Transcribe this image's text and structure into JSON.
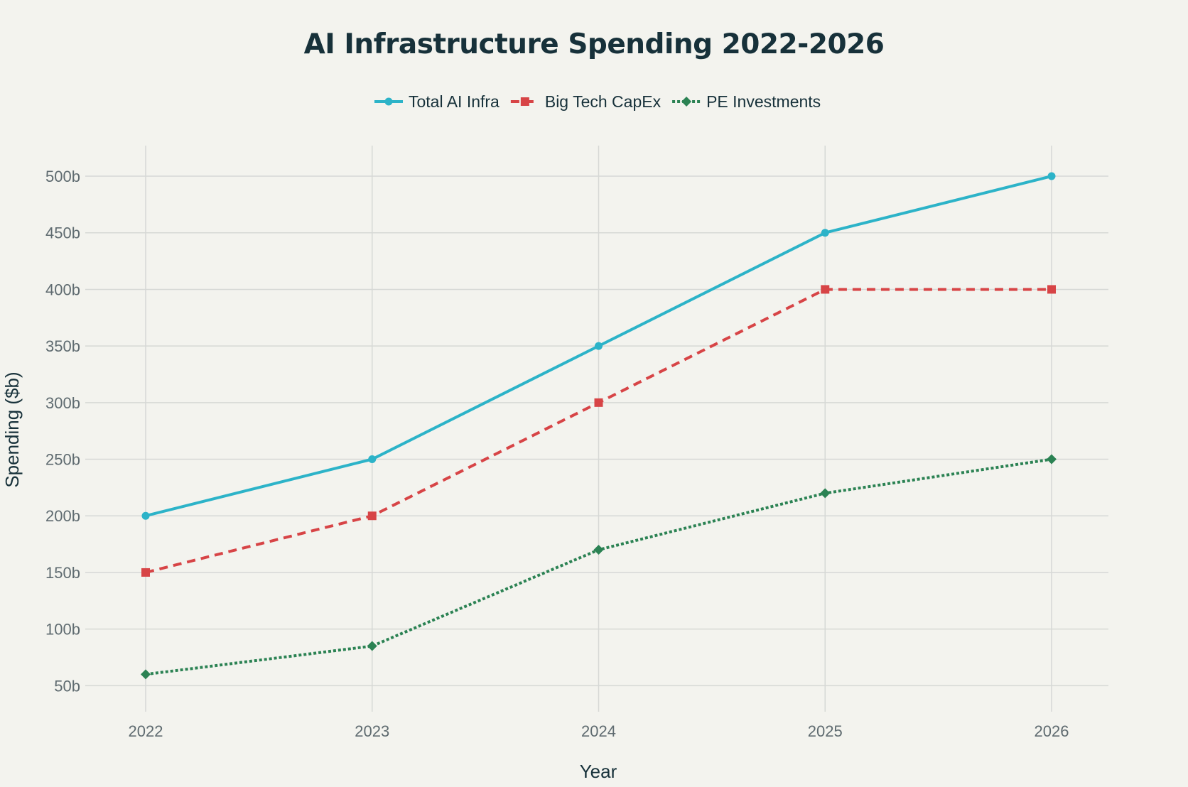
{
  "chart_data": {
    "type": "line",
    "title": "AI Infrastructure Spending 2022-2026",
    "xlabel": "Year",
    "ylabel": "Spending ($b)",
    "categories": [
      "2022",
      "2023",
      "2024",
      "2025",
      "2026"
    ],
    "y_ticks": [
      {
        "value": 50,
        "label": "50b"
      },
      {
        "value": 100,
        "label": "100b"
      },
      {
        "value": 150,
        "label": "150b"
      },
      {
        "value": 200,
        "label": "200b"
      },
      {
        "value": 250,
        "label": "250b"
      },
      {
        "value": 300,
        "label": "300b"
      },
      {
        "value": 350,
        "label": "350b"
      },
      {
        "value": 400,
        "label": "400b"
      },
      {
        "value": 450,
        "label": "450b"
      },
      {
        "value": 500,
        "label": "500b"
      }
    ],
    "ylim": [
      27,
      527
    ],
    "grid": true,
    "legend_position": "top-center",
    "series": [
      {
        "name": "Total AI Infra",
        "values": [
          200,
          250,
          350,
          450,
          500
        ],
        "color": "#2cb3c8",
        "dash": "solid",
        "marker": "circle"
      },
      {
        "name": "Big Tech CapEx",
        "values": [
          150,
          200,
          300,
          400,
          400
        ],
        "color": "#d74446",
        "dash": "dashed",
        "marker": "square"
      },
      {
        "name": "PE Investments",
        "values": [
          60,
          85,
          170,
          220,
          250
        ],
        "color": "#2b8253",
        "dash": "dotted",
        "marker": "diamond"
      }
    ]
  }
}
